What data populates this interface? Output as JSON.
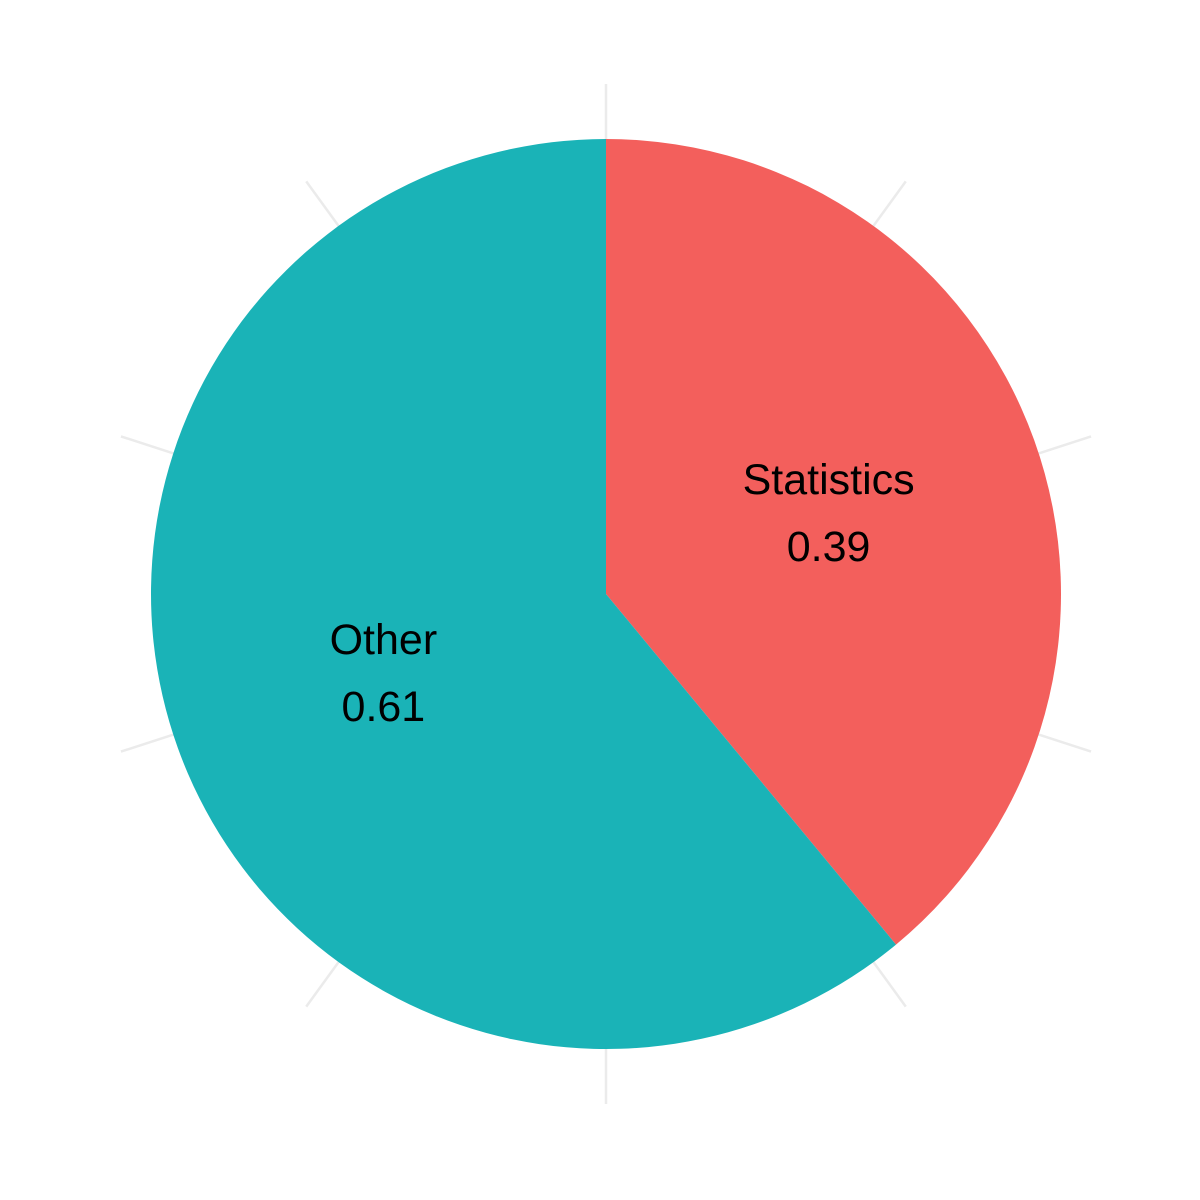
{
  "chart_data": {
    "type": "pie",
    "title": "",
    "start_angle_deg": 0,
    "direction": "clockwise",
    "grid": true,
    "grid_spokes": 10,
    "legend": "none",
    "slices": [
      {
        "name": "Statistics",
        "value": 0.39,
        "value_label": "0.39",
        "color": "#F35F5C"
      },
      {
        "name": "Other",
        "value": 0.61,
        "value_label": "0.61",
        "color": "#1AB3B7"
      }
    ]
  }
}
